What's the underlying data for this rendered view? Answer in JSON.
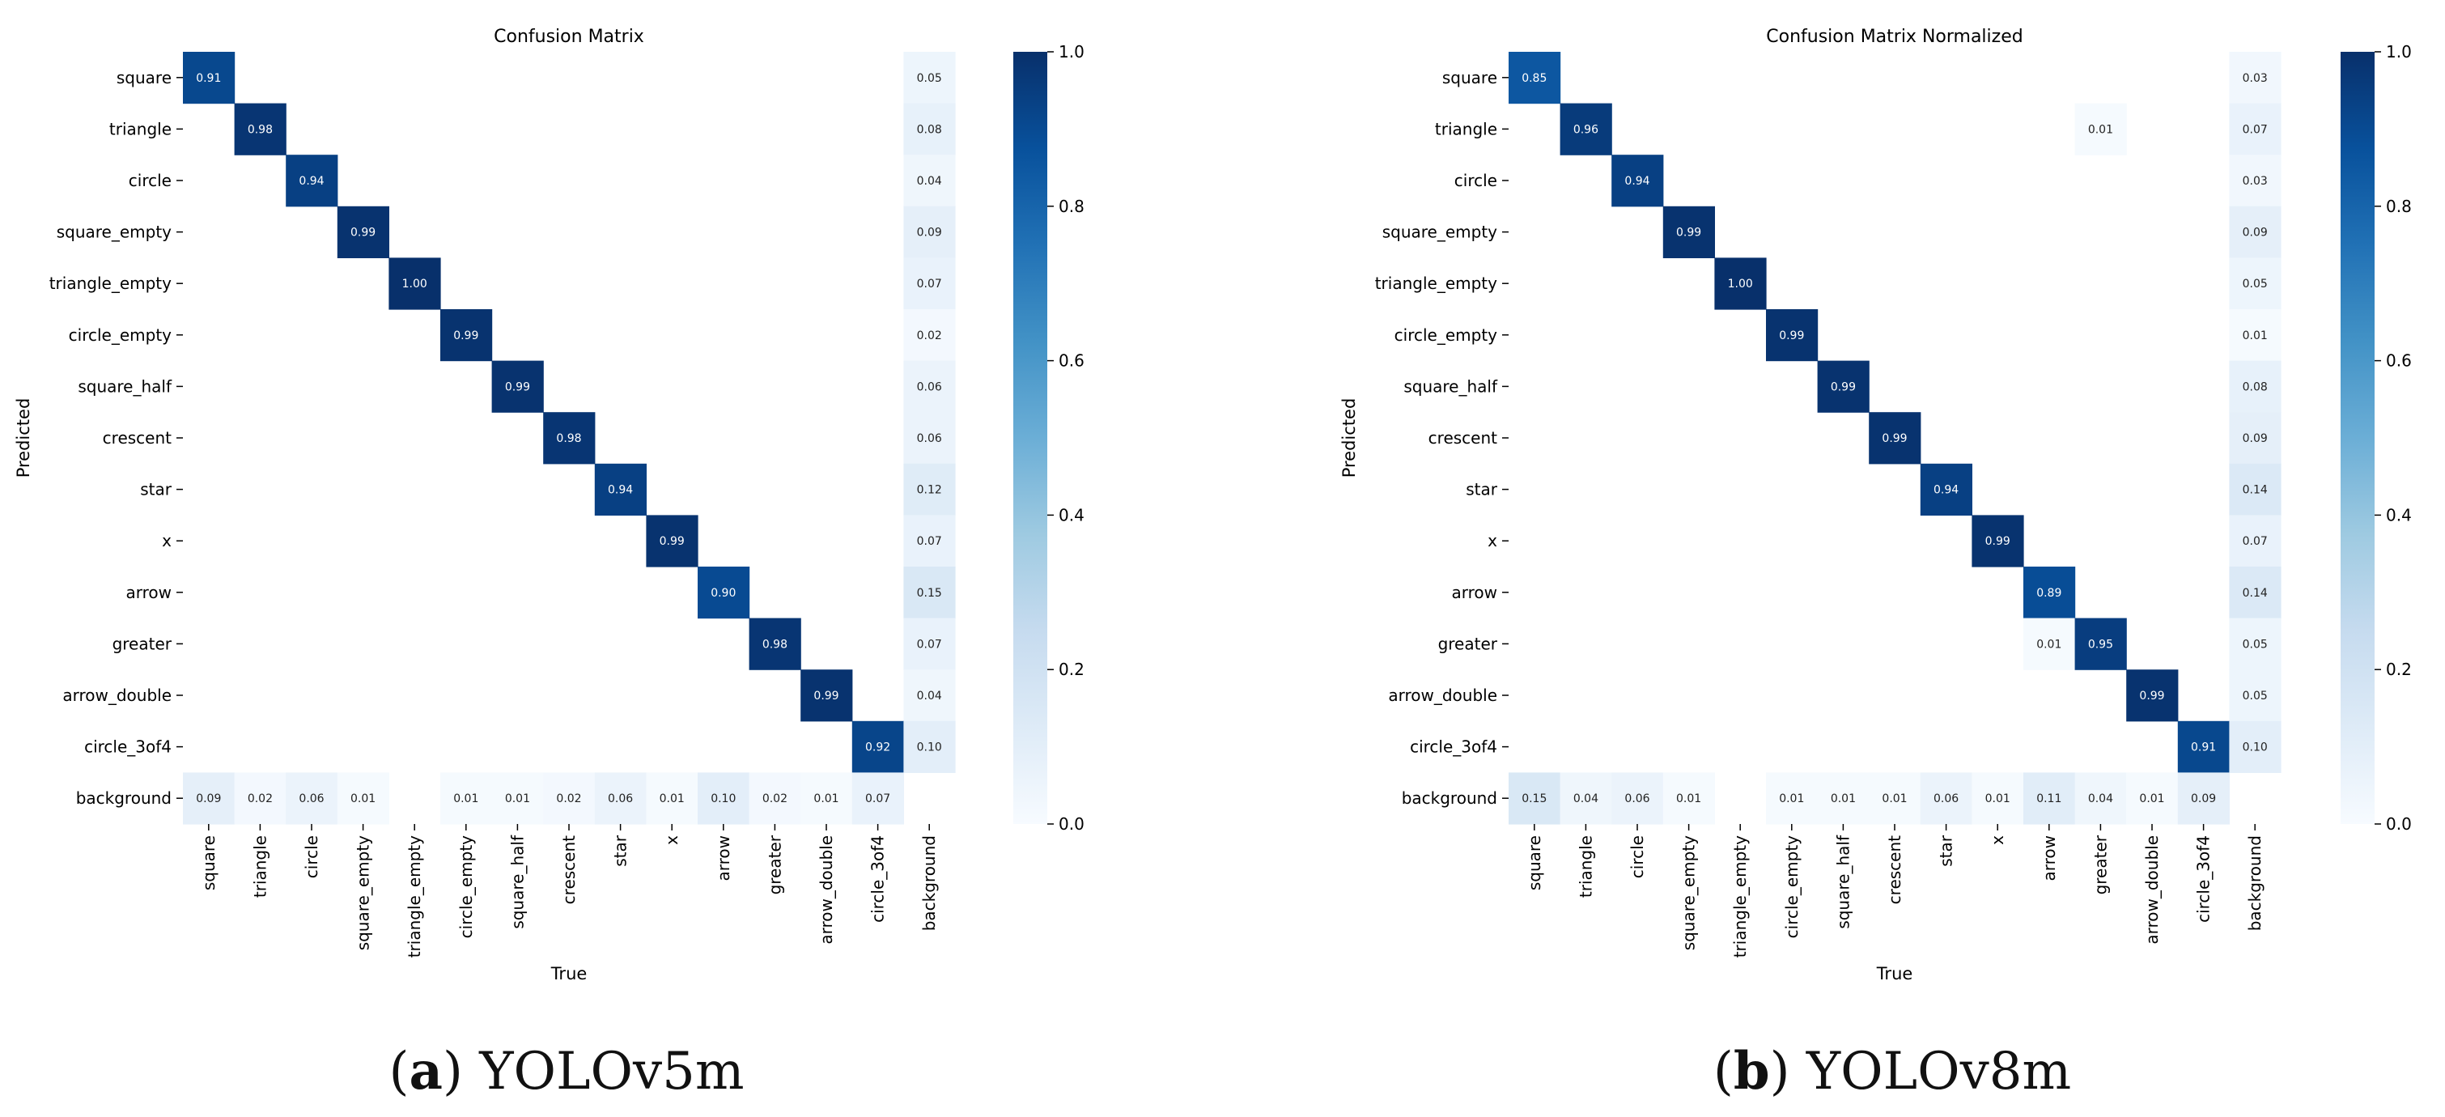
{
  "chart_data": [
    {
      "type": "heatmap",
      "title": "Confusion Matrix",
      "xlabel": "True",
      "ylabel": "Predicted",
      "caption_letter": "(a)",
      "caption_text": "YOLOv5m",
      "row_labels": [
        "square",
        "triangle",
        "circle",
        "square_empty",
        "triangle_empty",
        "circle_empty",
        "square_half",
        "crescent",
        "star",
        "x",
        "arrow",
        "greater",
        "arrow_double",
        "circle_3of4",
        "background"
      ],
      "col_labels": [
        "square",
        "triangle",
        "circle",
        "square_empty",
        "triangle_empty",
        "circle_empty",
        "square_half",
        "crescent",
        "star",
        "x",
        "arrow",
        "greater",
        "arrow_double",
        "circle_3of4",
        "background"
      ],
      "value_range": [
        0,
        1
      ],
      "colorbar_ticks": [
        "0.0",
        "0.2",
        "0.4",
        "0.6",
        "0.8",
        "1.0"
      ],
      "colorbar_tick_values": [
        0,
        0.2,
        0.4,
        0.6,
        0.8,
        1.0
      ],
      "values": [
        [
          0.91,
          null,
          null,
          null,
          null,
          null,
          null,
          null,
          null,
          null,
          null,
          null,
          null,
          null,
          0.05
        ],
        [
          null,
          0.98,
          null,
          null,
          null,
          null,
          null,
          null,
          null,
          null,
          null,
          null,
          null,
          null,
          0.08
        ],
        [
          null,
          null,
          0.94,
          null,
          null,
          null,
          null,
          null,
          null,
          null,
          null,
          null,
          null,
          null,
          0.04
        ],
        [
          null,
          null,
          null,
          0.99,
          null,
          null,
          null,
          null,
          null,
          null,
          null,
          null,
          null,
          null,
          0.09
        ],
        [
          null,
          null,
          null,
          null,
          1.0,
          null,
          null,
          null,
          null,
          null,
          null,
          null,
          null,
          null,
          0.07
        ],
        [
          null,
          null,
          null,
          null,
          null,
          0.99,
          null,
          null,
          null,
          null,
          null,
          null,
          null,
          null,
          0.02
        ],
        [
          null,
          null,
          null,
          null,
          null,
          null,
          0.99,
          null,
          null,
          null,
          null,
          null,
          null,
          null,
          0.06
        ],
        [
          null,
          null,
          null,
          null,
          null,
          null,
          null,
          0.98,
          null,
          null,
          null,
          null,
          null,
          null,
          0.06
        ],
        [
          null,
          null,
          null,
          null,
          null,
          null,
          null,
          null,
          0.94,
          null,
          null,
          null,
          null,
          null,
          0.12
        ],
        [
          null,
          null,
          null,
          null,
          null,
          null,
          null,
          null,
          null,
          0.99,
          null,
          null,
          null,
          null,
          0.07
        ],
        [
          null,
          null,
          null,
          null,
          null,
          null,
          null,
          null,
          null,
          null,
          0.9,
          null,
          null,
          null,
          0.15
        ],
        [
          null,
          null,
          null,
          null,
          null,
          null,
          null,
          null,
          null,
          null,
          null,
          0.98,
          null,
          null,
          0.07
        ],
        [
          null,
          null,
          null,
          null,
          null,
          null,
          null,
          null,
          null,
          null,
          null,
          null,
          0.99,
          null,
          0.04
        ],
        [
          null,
          null,
          null,
          null,
          null,
          null,
          null,
          null,
          null,
          null,
          null,
          null,
          null,
          0.92,
          0.1
        ],
        [
          0.09,
          0.02,
          0.06,
          0.01,
          null,
          0.01,
          0.01,
          0.02,
          0.06,
          0.01,
          0.1,
          0.02,
          0.01,
          0.07,
          null
        ]
      ]
    },
    {
      "type": "heatmap",
      "title": "Confusion Matrix Normalized",
      "xlabel": "True",
      "ylabel": "Predicted",
      "caption_letter": "(b)",
      "caption_text": "YOLOv8m",
      "row_labels": [
        "square",
        "triangle",
        "circle",
        "square_empty",
        "triangle_empty",
        "circle_empty",
        "square_half",
        "crescent",
        "star",
        "x",
        "arrow",
        "greater",
        "arrow_double",
        "circle_3of4",
        "background"
      ],
      "col_labels": [
        "square",
        "triangle",
        "circle",
        "square_empty",
        "triangle_empty",
        "circle_empty",
        "square_half",
        "crescent",
        "star",
        "x",
        "arrow",
        "greater",
        "arrow_double",
        "circle_3of4",
        "background"
      ],
      "value_range": [
        0,
        1
      ],
      "colorbar_ticks": [
        "0.0",
        "0.2",
        "0.4",
        "0.6",
        "0.8",
        "1.0"
      ],
      "colorbar_tick_values": [
        0,
        0.2,
        0.4,
        0.6,
        0.8,
        1.0
      ],
      "values": [
        [
          0.85,
          null,
          null,
          null,
          null,
          null,
          null,
          null,
          null,
          null,
          null,
          null,
          null,
          null,
          0.03
        ],
        [
          null,
          0.96,
          null,
          null,
          null,
          null,
          null,
          null,
          null,
          null,
          null,
          0.01,
          null,
          null,
          0.07
        ],
        [
          null,
          null,
          0.94,
          null,
          null,
          null,
          null,
          null,
          null,
          null,
          null,
          null,
          null,
          null,
          0.03
        ],
        [
          null,
          null,
          null,
          0.99,
          null,
          null,
          null,
          null,
          null,
          null,
          null,
          null,
          null,
          null,
          0.09
        ],
        [
          null,
          null,
          null,
          null,
          1.0,
          null,
          null,
          null,
          null,
          null,
          null,
          null,
          null,
          null,
          0.05
        ],
        [
          null,
          null,
          null,
          null,
          null,
          0.99,
          null,
          null,
          null,
          null,
          null,
          null,
          null,
          null,
          0.01
        ],
        [
          null,
          null,
          null,
          null,
          null,
          null,
          0.99,
          null,
          null,
          null,
          null,
          null,
          null,
          null,
          0.08
        ],
        [
          null,
          null,
          null,
          null,
          null,
          null,
          null,
          0.99,
          null,
          null,
          null,
          null,
          null,
          null,
          0.09
        ],
        [
          null,
          null,
          null,
          null,
          null,
          null,
          null,
          null,
          0.94,
          null,
          null,
          null,
          null,
          null,
          0.14
        ],
        [
          null,
          null,
          null,
          null,
          null,
          null,
          null,
          null,
          null,
          0.99,
          null,
          null,
          null,
          null,
          0.07
        ],
        [
          null,
          null,
          null,
          null,
          null,
          null,
          null,
          null,
          null,
          null,
          0.89,
          null,
          null,
          null,
          0.14
        ],
        [
          null,
          null,
          null,
          null,
          null,
          null,
          null,
          null,
          null,
          null,
          0.01,
          0.95,
          null,
          null,
          0.05
        ],
        [
          null,
          null,
          null,
          null,
          null,
          null,
          null,
          null,
          null,
          null,
          null,
          null,
          0.99,
          null,
          0.05
        ],
        [
          null,
          null,
          null,
          null,
          null,
          null,
          null,
          null,
          null,
          null,
          null,
          null,
          null,
          0.91,
          0.1
        ],
        [
          0.15,
          0.04,
          0.06,
          0.01,
          null,
          0.01,
          0.01,
          0.01,
          0.06,
          0.01,
          0.11,
          0.04,
          0.01,
          0.09,
          null
        ]
      ]
    }
  ]
}
